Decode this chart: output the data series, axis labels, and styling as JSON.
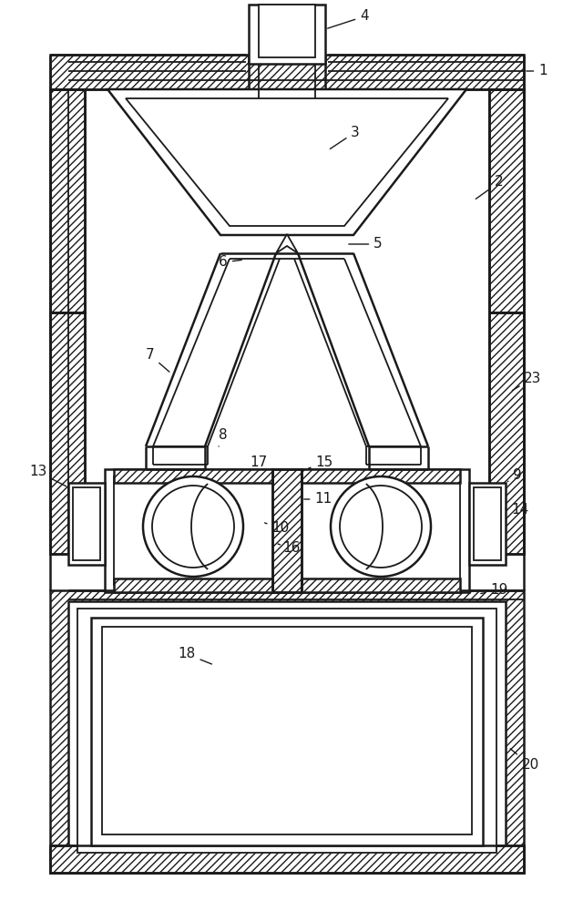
{
  "bg_color": "#ffffff",
  "line_color": "#1a1a1a",
  "lw": 1.8,
  "lw2": 1.3,
  "figsize": [
    6.29,
    10.0
  ],
  "dpi": 100
}
